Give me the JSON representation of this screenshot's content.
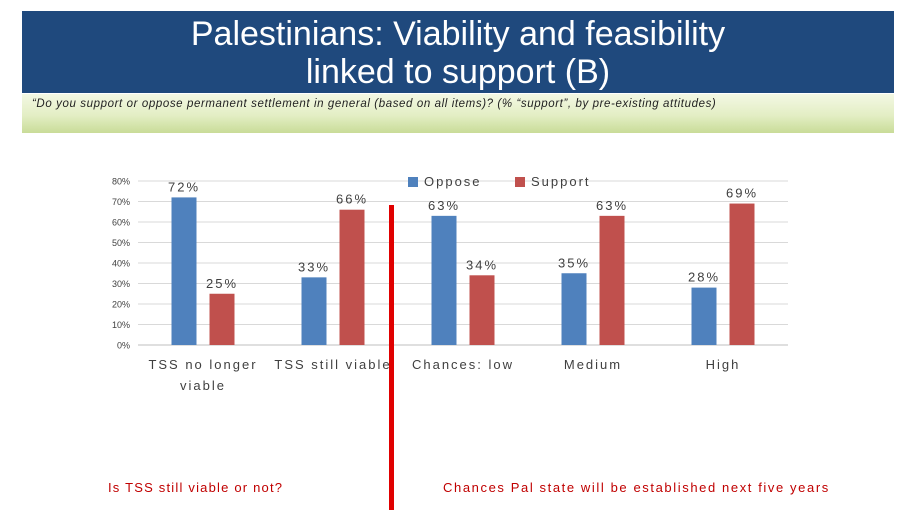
{
  "slide": {
    "title_line1": "Palestinians: Viability and feasibility",
    "title_line2": "linked to support (B)",
    "subtitle": "“Do you support or oppose permanent settlement in general (based on all items)? (% “support”, by pre-existing attitudes)",
    "footer_left": "Is TSS still viable or not?",
    "footer_right": "Chances Pal state will be established next five years",
    "colors": {
      "title_bg": "#1f497d",
      "oppose": "#4f81bd",
      "support": "#c0504d",
      "divider": "#e00000",
      "footer_text": "#c00000"
    }
  },
  "chart_data": {
    "type": "bar",
    "categories": [
      "TSS no longer viable",
      "TSS still viable",
      "Chances: low",
      "Medium",
      "High"
    ],
    "series": [
      {
        "name": "Oppose",
        "values": [
          72,
          33,
          63,
          35,
          28
        ],
        "labels": [
          "72%",
          "33%",
          "63%",
          "35%",
          "28%"
        ]
      },
      {
        "name": "Support",
        "values": [
          25,
          66,
          34,
          63,
          69
        ],
        "labels": [
          "25%",
          "66%",
          "34%",
          "63%",
          "69%"
        ]
      }
    ],
    "yticks": [
      "0%",
      "10%",
      "20%",
      "30%",
      "40%",
      "50%",
      "60%",
      "70%",
      "80%"
    ],
    "ylim": [
      0,
      80
    ],
    "grid": true,
    "legend_position": "top"
  }
}
